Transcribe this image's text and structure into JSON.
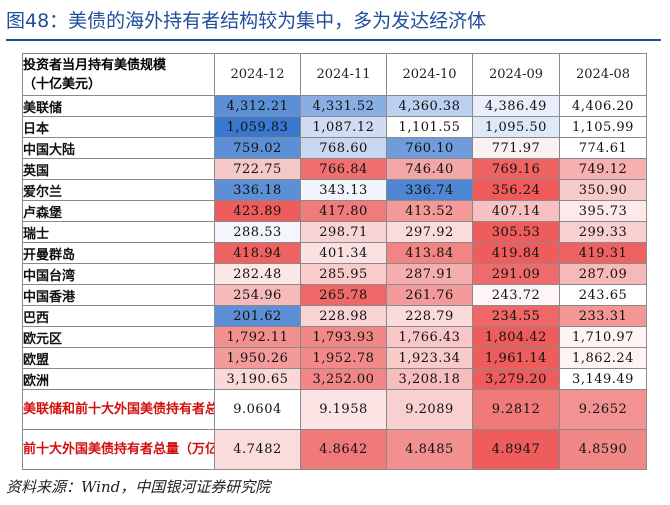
{
  "title": "图48：美债的海外持有者结构较为集中，多为发达经济体",
  "table": {
    "corner_header": [
      "投资者当月持有美债规模",
      "（十亿美元）"
    ],
    "columns": [
      "2024-12",
      "2024-11",
      "2024-10",
      "2024-09",
      "2024-08"
    ],
    "rows": [
      {
        "label": "美联储",
        "values": [
          "4,312.21",
          "4,331.52",
          "4,360.38",
          "4,386.49",
          "4,406.20"
        ],
        "colors": [
          "#5b8fd6",
          "#89aee3",
          "#bcd0ef",
          "#e8eefa",
          "#ffffff"
        ]
      },
      {
        "label": "日本",
        "values": [
          "1,059.83",
          "1,087.12",
          "1,101.55",
          "1,095.50",
          "1,105.99"
        ],
        "colors": [
          "#3a78cf",
          "#cfdcf2",
          "#ffffff",
          "#dfe8f7",
          "#ffffff"
        ]
      },
      {
        "label": "中国大陆",
        "values": [
          "759.02",
          "768.60",
          "760.10",
          "771.97",
          "774.61"
        ],
        "colors": [
          "#5b8fd6",
          "#c8d7f0",
          "#6f9ddb",
          "#fbf1f1",
          "#ffffff"
        ]
      },
      {
        "label": "英国",
        "values": [
          "722.75",
          "766.84",
          "746.40",
          "769.16",
          "749.12"
        ],
        "colors": [
          "#f5c8c8",
          "#f07070",
          "#f3a6a6",
          "#ee6262",
          "#f6b0b0"
        ]
      },
      {
        "label": "爱尔兰",
        "values": [
          "336.18",
          "343.13",
          "336.74",
          "356.24",
          "350.90"
        ],
        "colors": [
          "#5b8fd6",
          "#f0f4fb",
          "#4f86d3",
          "#f05a5a",
          "#f7caca"
        ]
      },
      {
        "label": "卢森堡",
        "values": [
          "423.89",
          "417.80",
          "413.52",
          "407.14",
          "395.73"
        ],
        "colors": [
          "#ee5c5c",
          "#f17a7a",
          "#f49898",
          "#f8c0c0",
          "#fde9e9"
        ]
      },
      {
        "label": "瑞士",
        "values": [
          "288.53",
          "298.71",
          "297.92",
          "305.53",
          "299.33"
        ],
        "colors": [
          "#f3f6fc",
          "#f9d4d4",
          "#fbdcdc",
          "#ee5c5c",
          "#f9d0d0"
        ]
      },
      {
        "label": "开曼群岛",
        "values": [
          "418.94",
          "401.34",
          "413.84",
          "419.84",
          "419.31"
        ],
        "colors": [
          "#ee6262",
          "#fbe2e2",
          "#f28484",
          "#ee5c5c",
          "#ee6262"
        ]
      },
      {
        "label": "中国台湾",
        "values": [
          "282.48",
          "285.95",
          "287.91",
          "291.09",
          "287.09"
        ],
        "colors": [
          "#fce6e6",
          "#f9cccc",
          "#f5aeae",
          "#ef6a6a",
          "#f7b8b8"
        ]
      },
      {
        "label": "中国香港",
        "values": [
          "254.96",
          "265.78",
          "261.76",
          "243.72",
          "243.65"
        ],
        "colors": [
          "#f7baba",
          "#ef6868",
          "#f39a9a",
          "#fef6f6",
          "#ffffff"
        ]
      },
      {
        "label": "巴西",
        "values": [
          "201.62",
          "228.98",
          "228.79",
          "234.55",
          "233.31"
        ],
        "colors": [
          "#5b8fd6",
          "#f9d4d4",
          "#fadada",
          "#ee6868",
          "#f39696"
        ]
      },
      {
        "label": "欧元区",
        "values": [
          "1,792.11",
          "1,793.93",
          "1,766.43",
          "1,804.42",
          "1,710.97"
        ],
        "colors": [
          "#f29090",
          "#f18888",
          "#f8c6c6",
          "#ee5c5c",
          "#fef4f4"
        ]
      },
      {
        "label": "欧盟",
        "values": [
          "1,950.26",
          "1,952.78",
          "1,923.34",
          "1,961.14",
          "1,862.24"
        ],
        "colors": [
          "#f39a9a",
          "#f28a8a",
          "#f8caca",
          "#ee5c5c",
          "#fef4f4"
        ]
      },
      {
        "label": "欧洲",
        "values": [
          "3,190.65",
          "3,252.00",
          "3,208.18",
          "3,279.20",
          "3,149.49"
        ],
        "colors": [
          "#fad8d8",
          "#f28686",
          "#f7bcbc",
          "#ee5c5c",
          "#ffffff"
        ]
      }
    ],
    "summary_rows": [
      {
        "label": "美联储和前十大外国美债持有者总量（万亿美元）",
        "values": [
          "9.0604",
          "9.1958",
          "9.2089",
          "9.2812",
          "9.2652"
        ],
        "colors": [
          "#ffffff",
          "#fce4e4",
          "#f9d0d0",
          "#f07a7a",
          "#f29292"
        ]
      },
      {
        "label": "前十大外国美债持有者总量（万亿美元）",
        "values": [
          "4.7482",
          "4.8642",
          "4.8485",
          "4.8947",
          "4.8590"
        ],
        "colors": [
          "#fbdcdc",
          "#f07a7a",
          "#f29090",
          "#ee5c5c",
          "#f18888"
        ]
      }
    ]
  },
  "source": "资料来源：Wind，中国银河证券研究院"
}
